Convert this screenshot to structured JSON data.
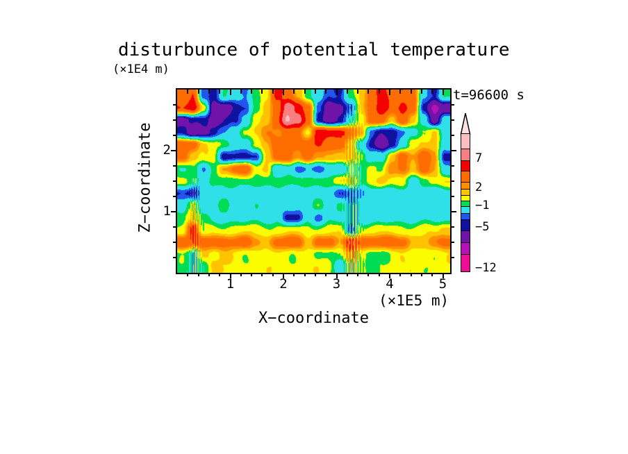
{
  "chart_data": {
    "type": "filled_contour",
    "title": "disturbunce of potential temperature",
    "time": "t=96600 s",
    "xlabel": "X−coordinate",
    "x_units": "(×1E5 m)",
    "zlabel": "Z−coordinate",
    "z_units": "(×1E4 m)",
    "x_range": [
      0,
      5.2
    ],
    "z_range": [
      0,
      3.0
    ],
    "x_major_ticks": [
      1,
      2,
      3,
      4,
      5
    ],
    "x_minor_step": 0.2,
    "z_major_ticks": [
      1,
      2
    ],
    "z_minor_step": 0.25,
    "legend_position": "right",
    "levels": [
      -12,
      -9,
      -7,
      -5,
      -4,
      -3,
      -1,
      0,
      1,
      2,
      3,
      5,
      7,
      9,
      11
    ],
    "palette": [
      "#EC0E94",
      "#B511B5",
      "#7013A8",
      "#1111A0",
      "#2255EE",
      "#30E0E8",
      "#00DD55",
      "#FCFC00",
      "#FFC300",
      "#FF8F00",
      "#FF6D00",
      "#F40000",
      "#F77F7F",
      "#FCBFBF"
    ],
    "colorbar": {
      "arrow_color": "#FCE2E2",
      "labels": [
        {
          "text": "7",
          "y": 229
        },
        {
          "text": "2",
          "y": 271
        },
        {
          "text": "−1",
          "y": 297
        },
        {
          "text": "−5",
          "y": 328
        },
        {
          "text": "−12",
          "y": 387
        }
      ],
      "segment_bounds_y": [
        193,
        215,
        232,
        247,
        263,
        273,
        282,
        290,
        298,
        308,
        317,
        333,
        350,
        367,
        392
      ]
    },
    "grid": {
      "x0": 0.1,
      "dx": 0.2,
      "z_top": 2.9,
      "dz": 0.2,
      "values": [
        [
          4,
          5,
          -4,
          -4.5,
          -0.5,
          -2,
          -3.5,
          -0.5,
          1,
          6,
          4,
          1.5,
          -0.5,
          -2,
          -4,
          -4.5,
          -0.5,
          1.5,
          4,
          5.5,
          4,
          5,
          4,
          -3,
          -4.5,
          -0.5
        ],
        [
          5.5,
          6,
          0.5,
          -6,
          -6,
          -4.5,
          -4.5,
          -0.5,
          1.5,
          4,
          8,
          6,
          4,
          -3.5,
          -6,
          -6,
          -3.5,
          1.5,
          4,
          6,
          4,
          6,
          4,
          -4.5,
          -8,
          -6
        ],
        [
          -6.5,
          -4.5,
          -4.5,
          -6,
          -5,
          -4.5,
          -2,
          0.5,
          1.5,
          4,
          9.5,
          8,
          4,
          -4.5,
          -6.5,
          -4.5,
          -2,
          0.5,
          4,
          4,
          1.5,
          4,
          1.5,
          -2,
          -6,
          -2
        ],
        [
          -4.5,
          -6.5,
          -5,
          -4.5,
          -3.5,
          -2,
          0.5,
          1.5,
          2.5,
          2.5,
          4,
          4,
          0.5,
          6,
          6,
          6,
          4,
          1.5,
          -3.5,
          -4.5,
          -4.5,
          -3.5,
          -2,
          0.5,
          1.5,
          -2
        ],
        [
          4,
          4,
          1.5,
          0.5,
          -0.5,
          -2,
          -2,
          0.5,
          1.5,
          4,
          4,
          4,
          4,
          5,
          4,
          4,
          1.5,
          -2,
          -4.5,
          -6,
          -4.5,
          -2,
          0.5,
          1.5,
          1.5,
          -2
        ],
        [
          4,
          1.5,
          0.5,
          0.5,
          -4.5,
          -4.5,
          -4.5,
          -4.5,
          1.5,
          4,
          4,
          2,
          4,
          2.5,
          1.5,
          1.5,
          1.5,
          0.5,
          -2,
          -2,
          1.5,
          4,
          2.5,
          4,
          2.5,
          -4.5
        ],
        [
          -0.5,
          -0.5,
          -3.5,
          -0.5,
          2.5,
          4,
          4,
          0.5,
          1.5,
          -2,
          -2,
          -4,
          -2.5,
          -3.5,
          -2,
          -3.5,
          -0.5,
          -0.5,
          0.5,
          -0.5,
          2.5,
          4,
          1.5,
          4,
          1.5,
          -2
        ],
        [
          0.5,
          -0.5,
          -2,
          -0.5,
          -0.5,
          -0.5,
          -0.5,
          -0.5,
          -0.5,
          -0.5,
          -0.5,
          -0.5,
          -0.5,
          -0.5,
          -0.5,
          1,
          1,
          -0.5,
          0.5,
          1.5,
          0.5,
          0.5,
          -2,
          -0.5,
          0.5,
          1
        ],
        [
          -4.5,
          -4.5,
          -2,
          -2,
          -2,
          -2,
          -2,
          -2,
          -2,
          -2,
          -2,
          -2,
          -2,
          -2,
          -2,
          -3.5,
          -3.5,
          -3.5,
          -2,
          -2,
          -2,
          -2,
          -2,
          -2,
          -2,
          -2
        ],
        [
          -2,
          0.5,
          -2,
          -2,
          -0.5,
          -2,
          -2,
          -0.5,
          -2,
          -2,
          -2,
          -2,
          -2,
          -0.5,
          -2,
          -0.5,
          -2,
          -2,
          -2,
          -2,
          -2,
          -2,
          -2,
          -2,
          -2,
          -2
        ],
        [
          -0.5,
          1.5,
          -0.5,
          -1.5,
          -1.5,
          -1.5,
          -1.5,
          -1.5,
          -1.5,
          -1.5,
          -4.5,
          -4.5,
          -1.5,
          -3.5,
          -1.5,
          -1.5,
          -2,
          -2,
          -2,
          -2,
          -1.5,
          -1.5,
          -1.5,
          -1.5,
          -1.5,
          -1.5
        ],
        [
          0.5,
          5.5,
          -0.5,
          0.5,
          0.5,
          0.5,
          0.5,
          0.5,
          0.5,
          0.5,
          0.5,
          0.5,
          0.5,
          0.5,
          0.5,
          0.5,
          -3,
          0.5,
          0.5,
          0.5,
          0.5,
          0.5,
          0.5,
          0.5,
          0.5,
          1.5
        ],
        [
          5,
          4,
          4,
          4,
          4,
          4,
          4,
          2.5,
          1.5,
          4,
          4,
          4,
          1.5,
          4,
          4,
          1.5,
          5.5,
          4,
          4,
          4,
          4,
          4,
          1.5,
          1.5,
          2.5,
          4
        ],
        [
          -0.5,
          -1.5,
          1.5,
          0.5,
          1.5,
          0.5,
          0.5,
          0.5,
          0.5,
          0.5,
          0.5,
          0.5,
          0.5,
          -0.5,
          -0.5,
          0.5,
          2.5,
          0.5,
          -0.5,
          -0.5,
          0.5,
          0.5,
          0.5,
          0.5,
          0.5,
          0.5
        ],
        [
          -0.5,
          -1.5,
          -0.5,
          1.5,
          0.5,
          0.5,
          0.5,
          0.5,
          0.5,
          0.5,
          0.5,
          0.5,
          0.5,
          0.5,
          0.5,
          -2,
          0.5,
          -0.5,
          -0.5,
          0.5,
          0.5,
          0.5,
          0.5,
          0.5,
          0.5,
          0.5
        ]
      ]
    },
    "plumes": [
      {
        "x": 0.35,
        "z_max": 1.55,
        "amp": 3.0,
        "width": 0.09,
        "k": 140
      },
      {
        "x": 3.35,
        "z_max": 2.75,
        "amp": 3.2,
        "width": 0.13,
        "k": 110
      }
    ],
    "noise_amp": 0.45
  }
}
